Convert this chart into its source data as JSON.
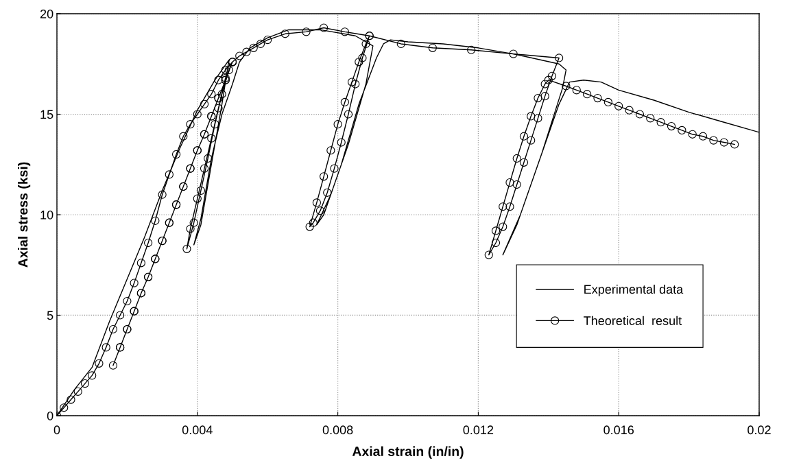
{
  "chart_data": {
    "type": "line",
    "xlabel": "Axial strain (in/in)",
    "ylabel": "Axial stress (ksi)",
    "xlim": [
      0,
      0.02
    ],
    "xticks": [
      0,
      0.004,
      0.008,
      0.012,
      0.016,
      0.02
    ],
    "ylim": [
      0,
      20
    ],
    "yticks": [
      0,
      5,
      10,
      15,
      20
    ],
    "grid": true,
    "legend": "bottom right",
    "series": [
      {
        "name": "Experimental data",
        "color": "#000000",
        "marker": "none",
        "line_style": "solid",
        "x": [
          0,
          0.0005,
          0.001,
          0.0015,
          0.002,
          0.0025,
          0.003,
          0.0035,
          0.004,
          0.0045,
          0.0049,
          0.0047,
          0.0044,
          0.0041,
          0.0039,
          0.0041,
          0.0044,
          0.0047,
          0.005,
          0.0052,
          0.0055,
          0.006,
          0.0066,
          0.0075,
          0.0085,
          0.009,
          0.0088,
          0.0083,
          0.0078,
          0.0074,
          0.0076,
          0.0081,
          0.0086,
          0.0091,
          0.0093,
          0.0095,
          0.01,
          0.011,
          0.012,
          0.013,
          0.0143,
          0.0145,
          0.0144,
          0.0138,
          0.0132,
          0.0127,
          0.0131,
          0.0137,
          0.0143,
          0.0146,
          0.015,
          0.0155,
          0.016,
          0.017,
          0.018,
          0.019,
          0.02
        ],
        "values": [
          0,
          1.3,
          2.4,
          4.7,
          6.8,
          8.9,
          11.2,
          13.3,
          15.2,
          16.7,
          17.7,
          15.5,
          12.5,
          9.5,
          8.5,
          9.8,
          12.8,
          15.0,
          16.5,
          17.6,
          18.3,
          18.8,
          19.2,
          19.2,
          18.9,
          18.4,
          16.5,
          13.5,
          11.0,
          9.5,
          10.0,
          12.5,
          15.5,
          17.8,
          18.5,
          18.7,
          18.6,
          18.5,
          18.3,
          18.0,
          17.5,
          17.2,
          16.3,
          13.0,
          10.0,
          8.0,
          9.5,
          12.5,
          15.5,
          16.6,
          16.7,
          16.6,
          16.2,
          15.7,
          15.1,
          14.6,
          14.1
        ]
      },
      {
        "name": "Theoretical  result",
        "color": "#000000",
        "marker": "circle",
        "line_style": "solid",
        "x": [
          0,
          0.0002,
          0.0004,
          0.0006,
          0.0008,
          0.001,
          0.0012,
          0.0014,
          0.0016,
          0.0018,
          0.002,
          0.0022,
          0.0024,
          0.0026,
          0.0028,
          0.003,
          0.0032,
          0.0034,
          0.0036,
          0.0038,
          0.004,
          0.0042,
          0.0044,
          0.0046,
          0.0048,
          0.005,
          0.0048,
          0.0046,
          0.0044,
          0.0042,
          0.004,
          0.0038,
          0.0036,
          0.0034,
          0.0032,
          0.003,
          0.0028,
          0.0026,
          0.0024,
          0.0022,
          0.002,
          0.0018,
          0.0016,
          0.0018,
          0.002,
          0.0022,
          0.0024,
          0.0026,
          0.0028,
          0.003,
          0.0032,
          0.0034,
          0.0036,
          0.0038,
          0.004,
          0.0042,
          0.0044,
          0.0046,
          0.0048,
          0.005,
          0.0048,
          0.0046,
          0.0044,
          0.0042,
          0.004,
          0.0038,
          0.0037,
          0.0039,
          0.0041,
          0.0043,
          0.0045,
          0.0047,
          0.0049,
          0.005,
          0.0052,
          0.0054,
          0.0056,
          0.0058,
          0.006,
          0.0065,
          0.0071,
          0.0076,
          0.0082,
          0.0089,
          0.0087,
          0.0085,
          0.0083,
          0.0081,
          0.0079,
          0.0077,
          0.0075,
          0.0073,
          0.0072,
          0.0074,
          0.0076,
          0.0078,
          0.008,
          0.0082,
          0.0084,
          0.0086,
          0.0088,
          0.0089,
          0.0098,
          0.0107,
          0.0118,
          0.013,
          0.0143,
          0.0141,
          0.0139,
          0.0137,
          0.0135,
          0.0133,
          0.0131,
          0.0129,
          0.0127,
          0.0125,
          0.0123,
          0.0125,
          0.0127,
          0.0129,
          0.0131,
          0.0133,
          0.0135,
          0.0137,
          0.0139,
          0.014,
          0.0145,
          0.0148,
          0.0151,
          0.0154,
          0.0157,
          0.016,
          0.0163,
          0.0166,
          0.0169,
          0.0172,
          0.0175,
          0.0178,
          0.0181,
          0.0184,
          0.0187,
          0.019,
          0.0193
        ],
        "values": [
          0,
          0.4,
          0.8,
          1.2,
          1.6,
          2.0,
          2.6,
          3.4,
          4.3,
          5.0,
          5.7,
          6.6,
          7.6,
          8.6,
          9.7,
          11.0,
          12.0,
          13.0,
          13.9,
          14.5,
          15.0,
          15.5,
          16.0,
          16.7,
          17.2,
          17.6,
          16.7,
          15.8,
          14.9,
          14.0,
          13.2,
          12.3,
          11.4,
          10.5,
          9.6,
          8.7,
          7.8,
          6.9,
          6.1,
          5.2,
          4.3,
          3.4,
          2.5,
          3.4,
          4.3,
          5.2,
          6.1,
          6.9,
          7.8,
          8.7,
          9.6,
          10.5,
          11.4,
          12.3,
          13.2,
          14.0,
          14.9,
          15.8,
          16.7,
          17.6,
          16.8,
          15.3,
          13.8,
          12.3,
          10.8,
          9.3,
          8.3,
          9.6,
          11.2,
          12.8,
          14.5,
          16.0,
          17.2,
          17.6,
          17.9,
          18.1,
          18.3,
          18.5,
          18.7,
          19.0,
          19.1,
          19.3,
          19.1,
          18.9,
          17.8,
          16.5,
          15.0,
          13.6,
          12.3,
          11.1,
          10.2,
          9.6,
          9.4,
          10.6,
          11.9,
          13.2,
          14.5,
          15.6,
          16.6,
          17.6,
          18.5,
          18.9,
          18.5,
          18.3,
          18.2,
          18.0,
          17.8,
          16.9,
          15.9,
          14.8,
          13.7,
          12.6,
          11.5,
          10.4,
          9.4,
          8.6,
          8.0,
          9.2,
          10.4,
          11.6,
          12.8,
          13.9,
          14.9,
          15.8,
          16.5,
          16.7,
          16.4,
          16.2,
          16.0,
          15.8,
          15.6,
          15.4,
          15.2,
          15.0,
          14.8,
          14.6,
          14.4,
          14.2,
          14.0,
          13.9,
          13.7,
          13.6,
          13.5
        ]
      }
    ]
  }
}
